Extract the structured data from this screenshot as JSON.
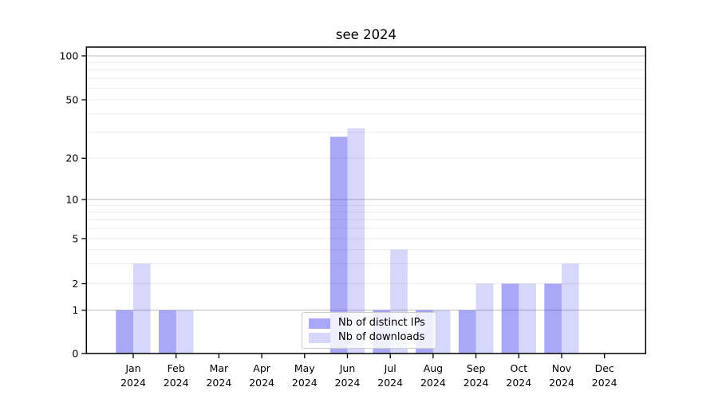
{
  "chart_data": {
    "type": "bar",
    "title": "see 2024",
    "months": [
      "Jan",
      "Feb",
      "Mar",
      "Apr",
      "May",
      "Jun",
      "Jul",
      "Aug",
      "Sep",
      "Oct",
      "Nov",
      "Dec"
    ],
    "year_label": "2024",
    "series": [
      {
        "name": "Nb of distinct IPs",
        "color_hex": "#a8a8f7",
        "fill_rgba": "rgba(68,68,238,0.465)",
        "values": [
          1,
          1,
          0,
          0,
          0,
          28,
          1,
          1,
          1,
          2,
          2,
          0
        ]
      },
      {
        "name": "Nb of downloads",
        "color_hex": "#d8d8fa",
        "fill_rgba": "rgba(68,68,238,0.21)",
        "values": [
          3,
          1,
          0,
          0,
          0,
          32,
          4,
          1,
          2,
          2,
          3,
          0
        ]
      }
    ],
    "y_ticks": [
      0,
      1,
      2,
      5,
      10,
      20,
      50,
      100
    ],
    "y_scale": "symlog",
    "ylim": [
      0,
      110
    ],
    "grid": {
      "horizontal": true,
      "minor": true
    },
    "legend_position": "lower-center",
    "colors": {
      "major_gridline": "#b9b9b9",
      "minor_gridline": "#ececec",
      "spine": "#000000"
    }
  }
}
